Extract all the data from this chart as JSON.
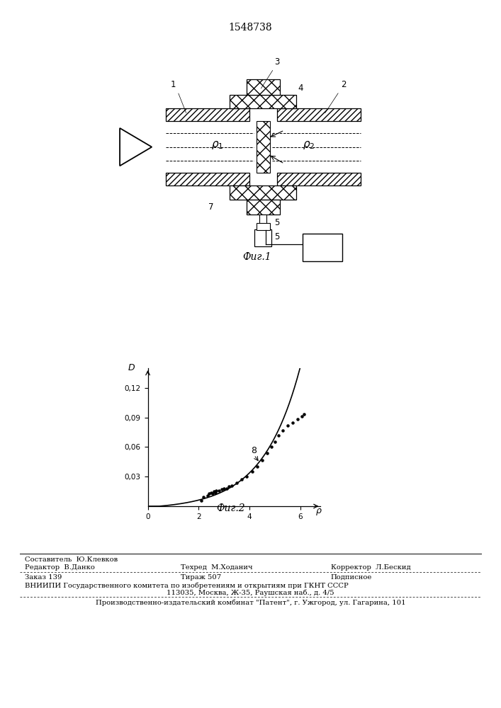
{
  "title": "1548738",
  "title_fontsize": 10,
  "bg_color": "#ffffff",
  "graph_ytick_labels": [
    "0,03",
    "0,06",
    "0,09",
    "0,12"
  ],
  "graph_yticks": [
    0.03,
    0.06,
    0.09,
    0.12
  ],
  "graph_xticks": [
    0,
    2,
    4,
    6
  ],
  "graph_xlim": [
    0,
    6.8
  ],
  "graph_ylim": [
    0,
    0.14
  ],
  "scatter_points_x": [
    2.1,
    2.2,
    2.35,
    2.4,
    2.5,
    2.55,
    2.6,
    2.65,
    2.7,
    2.8,
    2.9,
    3.0,
    3.1,
    3.2,
    3.3,
    3.5,
    3.7,
    3.9,
    4.1,
    4.3,
    4.5,
    4.7,
    4.85,
    5.0,
    5.15,
    5.3,
    5.5,
    5.7,
    5.9,
    6.05,
    6.15
  ],
  "scatter_points_y": [
    0.006,
    0.009,
    0.011,
    0.013,
    0.014,
    0.013,
    0.015,
    0.014,
    0.016,
    0.016,
    0.017,
    0.018,
    0.018,
    0.02,
    0.021,
    0.024,
    0.027,
    0.03,
    0.035,
    0.04,
    0.047,
    0.054,
    0.06,
    0.065,
    0.072,
    0.077,
    0.082,
    0.085,
    0.088,
    0.091,
    0.093
  ],
  "footer_col1_row1": "Редактор  В.Данко",
  "footer_col2_row1a": "Составитель  Ю.Клевков",
  "footer_col2_row1b": "Техред  М.Ходанич",
  "footer_col3_row1": "Корректор  Л.Бескид",
  "footer_order": "Заказ 139",
  "footer_copies": "Тираж 507",
  "footer_signed": "Подписное",
  "footer_vniip": "ВНИИПИ Государственного комитета по изобретениям и открытиям при ГКНТ СССР",
  "footer_address": "113035, Москва, Ж-35, Раушская наб., д. 4/5",
  "footer_plant": "Производственно-издательский комбинат \"Патент\", г. Ужгород, ул. Гагарина, 101"
}
